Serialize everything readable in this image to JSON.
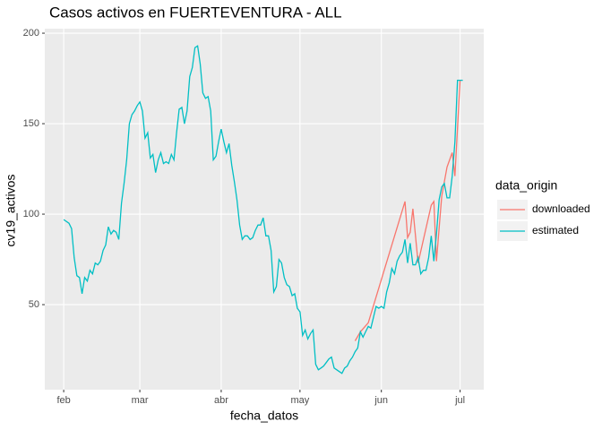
{
  "chart_data": {
    "type": "line",
    "title": "Casos activos en FUERTEVENTURA - ALL",
    "x_label": "fecha_datos",
    "y_label": "cv19_activos",
    "legend_title": "data_origin",
    "xlim": [
      -7.2,
      160
    ],
    "ylim": [
      3,
      202.5
    ],
    "xticks": [
      {
        "value": 0,
        "label": "feb"
      },
      {
        "value": 29,
        "label": "mar"
      },
      {
        "value": 60,
        "label": "abr"
      },
      {
        "value": 90,
        "label": "may"
      },
      {
        "value": 121,
        "label": "jun"
      },
      {
        "value": 151,
        "label": "jul"
      }
    ],
    "yticks": [
      50,
      100,
      150,
      200
    ],
    "grid": true,
    "legend": "right",
    "series": [
      {
        "name": "downloaded",
        "color": "#F8766D",
        "x": [
          111,
          113,
          116,
          130,
          131,
          132,
          133,
          135,
          140,
          141,
          142,
          144,
          146,
          148,
          149,
          151
        ],
        "values": [
          30,
          35,
          40,
          107,
          87,
          90,
          103,
          73,
          105,
          107,
          74,
          110,
          126,
          134,
          121,
          174
        ]
      },
      {
        "name": "estimated",
        "color": "#00BFC4",
        "x": [
          0,
          2,
          3,
          4,
          5,
          6,
          7,
          8,
          9,
          10,
          11,
          12,
          13,
          14,
          15,
          16,
          17,
          18,
          19,
          20,
          21,
          22,
          23,
          24,
          25,
          26,
          27,
          28,
          29,
          30,
          31,
          32,
          33,
          34,
          35,
          36,
          37,
          38,
          39,
          40,
          41,
          42,
          43,
          44,
          45,
          46,
          47,
          48,
          49,
          50,
          51,
          52,
          53,
          54,
          55,
          56,
          57,
          58,
          59,
          60,
          61,
          62,
          63,
          64,
          65,
          66,
          67,
          68,
          69,
          70,
          71,
          72,
          73,
          74,
          75,
          76,
          77,
          78,
          79,
          80,
          81,
          82,
          83,
          84,
          85,
          86,
          87,
          88,
          89,
          90,
          91,
          92,
          93,
          94,
          95,
          96,
          97,
          98,
          99,
          100,
          101,
          102,
          103,
          104,
          105,
          106,
          107,
          108,
          109,
          110,
          111,
          112,
          113,
          114,
          115,
          116,
          117,
          118,
          119,
          120,
          121,
          122,
          123,
          124,
          125,
          126,
          127,
          128,
          129,
          130,
          131,
          132,
          133,
          134,
          135,
          136,
          137,
          138,
          139,
          140,
          141,
          142,
          143,
          144,
          145,
          146,
          147,
          148,
          149,
          150,
          151,
          152
        ],
        "values": [
          97,
          95,
          92,
          76,
          66,
          65,
          56,
          65,
          63,
          69,
          67,
          73,
          72,
          74,
          80,
          83,
          93,
          89,
          91,
          90,
          86,
          106,
          117,
          130,
          150,
          155,
          157,
          160,
          162,
          157,
          142,
          145,
          131,
          133,
          123,
          130,
          134,
          128,
          129,
          128,
          133,
          130,
          145,
          158,
          159,
          150,
          157,
          176,
          181,
          192,
          193,
          183,
          167,
          164,
          165,
          157,
          130,
          132,
          140,
          147,
          140,
          134,
          139,
          127,
          118,
          108,
          94,
          86,
          88,
          88,
          86,
          87,
          91,
          94,
          94,
          98,
          88,
          88,
          80,
          57,
          60,
          75,
          73,
          65,
          61,
          60,
          55,
          56,
          48,
          46,
          33,
          36,
          31,
          34,
          36,
          17,
          14,
          15,
          16,
          18,
          20,
          21,
          15,
          14,
          13,
          12,
          15,
          16,
          19,
          21,
          24,
          26,
          35,
          32,
          35,
          38,
          37,
          43,
          49,
          48,
          49,
          48,
          57,
          62,
          70,
          67,
          74,
          77,
          79,
          86,
          73,
          84,
          72,
          72,
          76,
          67,
          69,
          69,
          76,
          88,
          74,
          89,
          108,
          115,
          117,
          109,
          109,
          121,
          140,
          174,
          174,
          174
        ]
      }
    ]
  }
}
